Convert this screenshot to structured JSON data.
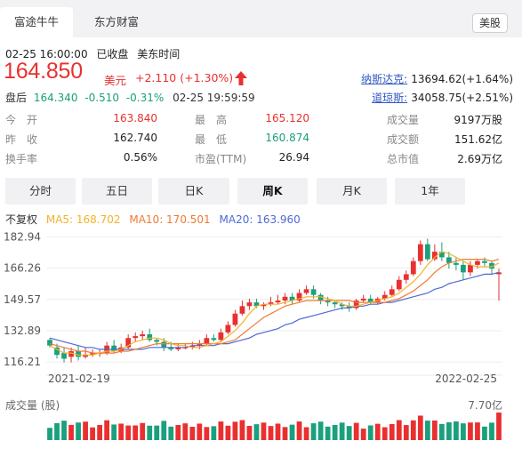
{
  "tabs": [
    {
      "label": "富途牛牛",
      "active": true
    },
    {
      "label": "东方财富",
      "active": false
    }
  ],
  "market_badge": "美股",
  "status": {
    "datetime": "02-25 16:00:00",
    "market_state": "已收盘",
    "timezone": "美东时间"
  },
  "quote": {
    "price": "164.850",
    "currency": "美元",
    "change": "+2.110 (+1.30%)",
    "direction": "up"
  },
  "after_hours": {
    "label": "盘后",
    "price": "164.340",
    "change": "-0.510",
    "change_pct": "-0.31%",
    "time": "02-25 19:59:59"
  },
  "indices": [
    {
      "name": "纳斯达克:",
      "value": "13694.62(+1.64%)"
    },
    {
      "name": "道琼斯:",
      "value": "34058.75(+2.51%)"
    }
  ],
  "stats": {
    "open_label": "今　开",
    "open": "163.840",
    "prev_close_label": "昨　收",
    "prev_close": "162.740",
    "turnover_rate_label": "换手率",
    "turnover_rate": "0.56%",
    "high_label": "最　高",
    "high": "165.120",
    "low_label": "最　低",
    "low": "160.874",
    "pe_label": "市盈(TTM)",
    "pe": "26.94",
    "volume_label": "成交量",
    "volume": "9197万股",
    "amount_label": "成交额",
    "amount": "151.62亿",
    "mktcap_label": "总市值",
    "mktcap": "2.69万亿"
  },
  "periods": [
    {
      "label": "分时",
      "active": false
    },
    {
      "label": "五日",
      "active": false
    },
    {
      "label": "日K",
      "active": false
    },
    {
      "label": "周K",
      "active": true
    },
    {
      "label": "月K",
      "active": false
    },
    {
      "label": "1年",
      "active": false
    }
  ],
  "ma_legend": {
    "adjust": "不复权",
    "ma5": "MA5: 168.702",
    "ma10": "MA10: 170.501",
    "ma20": "MA20: 163.960"
  },
  "colors": {
    "up": "#e93030",
    "down": "#1aa07c",
    "ma5": "#f3b32a",
    "ma10": "#f07a35",
    "ma20": "#4d6ad6",
    "index_link": "#3358c4"
  },
  "volume_panel": {
    "label": "成交量 (股)",
    "max": "7.70亿"
  },
  "chart_data": {
    "type": "candlestick",
    "y_ticks": [
      "182.94",
      "166.26",
      "149.57",
      "132.89",
      "116.21"
    ],
    "ylim": [
      113,
      185
    ],
    "x_start_label": "2021-02-19",
    "x_end_label": "2022-02-25",
    "candles": [
      [
        128,
        125,
        129,
        124
      ],
      [
        124,
        120,
        126,
        118
      ],
      [
        121,
        118,
        124,
        116
      ],
      [
        119,
        122,
        124,
        116
      ],
      [
        122,
        119,
        125,
        117
      ],
      [
        119,
        120,
        124,
        118
      ],
      [
        120,
        121,
        123,
        119
      ],
      [
        121,
        121,
        123,
        119
      ],
      [
        121,
        125,
        127,
        120
      ],
      [
        125,
        122,
        128,
        121
      ],
      [
        122,
        124,
        126,
        121
      ],
      [
        124,
        129,
        131,
        123
      ],
      [
        129,
        130,
        132,
        127
      ],
      [
        130,
        131,
        133,
        128
      ],
      [
        131,
        128,
        134,
        127
      ],
      [
        128,
        127,
        129,
        125
      ],
      [
        127,
        124,
        129,
        122
      ],
      [
        124,
        123,
        127,
        122
      ],
      [
        123,
        124,
        126,
        122
      ],
      [
        124,
        124,
        126,
        123
      ],
      [
        124,
        125,
        127,
        123
      ],
      [
        125,
        126,
        128,
        123
      ],
      [
        126,
        129,
        131,
        125
      ],
      [
        129,
        128,
        131,
        127
      ],
      [
        128,
        132,
        134,
        127
      ],
      [
        132,
        136,
        138,
        131
      ],
      [
        136,
        142,
        144,
        135
      ],
      [
        142,
        146,
        149,
        141
      ],
      [
        146,
        148,
        150,
        144
      ],
      [
        148,
        146,
        150,
        145
      ],
      [
        146,
        147,
        148,
        144
      ],
      [
        147,
        148,
        151,
        146
      ],
      [
        148,
        149,
        152,
        147
      ],
      [
        149,
        151,
        153,
        147
      ],
      [
        151,
        149,
        153,
        147
      ],
      [
        149,
        153,
        155,
        148
      ],
      [
        153,
        155,
        157,
        152
      ],
      [
        155,
        152,
        157,
        150
      ],
      [
        152,
        149,
        153,
        147
      ],
      [
        149,
        148,
        151,
        146
      ],
      [
        148,
        147,
        149,
        145
      ],
      [
        147,
        146,
        148,
        144
      ],
      [
        146,
        145,
        148,
        143
      ],
      [
        145,
        149,
        150,
        144
      ],
      [
        149,
        150,
        152,
        148
      ],
      [
        150,
        148,
        152,
        147
      ],
      [
        148,
        150,
        151,
        147
      ],
      [
        150,
        152,
        154,
        149
      ],
      [
        152,
        155,
        157,
        151
      ],
      [
        155,
        160,
        162,
        154
      ],
      [
        160,
        163,
        165,
        158
      ],
      [
        163,
        170,
        172,
        162
      ],
      [
        170,
        179,
        181,
        168
      ],
      [
        179,
        171,
        182,
        170
      ],
      [
        171,
        175,
        179,
        170
      ],
      [
        175,
        172,
        180,
        170
      ],
      [
        172,
        169,
        175,
        166
      ],
      [
        169,
        168,
        172,
        165
      ],
      [
        168,
        164,
        170,
        160
      ],
      [
        164,
        168,
        170,
        162
      ],
      [
        168,
        170,
        171,
        166
      ],
      [
        170,
        169,
        172,
        167
      ],
      [
        169,
        166,
        170,
        163
      ],
      [
        163,
        164,
        166,
        149
      ]
    ],
    "ma5": [
      125,
      123,
      121,
      121,
      120,
      120,
      120,
      121,
      122,
      122,
      123,
      125,
      127,
      128,
      129,
      129,
      128,
      126,
      125,
      125,
      124,
      124,
      125,
      126,
      127,
      130,
      133,
      137,
      142,
      146,
      147,
      147,
      147,
      148,
      149,
      150,
      151,
      151,
      151,
      150,
      149,
      147,
      146,
      146,
      147,
      148,
      149,
      150,
      151,
      153,
      156,
      159,
      163,
      168,
      172,
      175,
      174,
      172,
      170,
      168,
      167,
      167,
      167,
      169
    ],
    "ma10": [
      126,
      125,
      124,
      123,
      122,
      122,
      121,
      121,
      121,
      121,
      122,
      122,
      123,
      124,
      125,
      126,
      126,
      126,
      126,
      126,
      126,
      126,
      126,
      126,
      126,
      127,
      128,
      131,
      134,
      137,
      140,
      142,
      144,
      146,
      147,
      148,
      149,
      149,
      149,
      149,
      149,
      149,
      149,
      148,
      148,
      148,
      148,
      148,
      149,
      150,
      152,
      154,
      157,
      160,
      164,
      167,
      169,
      170,
      171,
      171,
      171,
      171,
      170,
      171
    ],
    "ma20": [
      129,
      128,
      127,
      126,
      125,
      124,
      124,
      123,
      123,
      123,
      123,
      123,
      123,
      123,
      124,
      124,
      124,
      124,
      124,
      124,
      125,
      125,
      125,
      125,
      126,
      126,
      127,
      128,
      129,
      131,
      132,
      133,
      134,
      136,
      137,
      139,
      140,
      141,
      142,
      143,
      144,
      145,
      145,
      146,
      146,
      147,
      147,
      148,
      148,
      149,
      150,
      151,
      152,
      153,
      155,
      156,
      158,
      159,
      160,
      161,
      162,
      163,
      163,
      164
    ],
    "volume_max": "7.70亿"
  }
}
